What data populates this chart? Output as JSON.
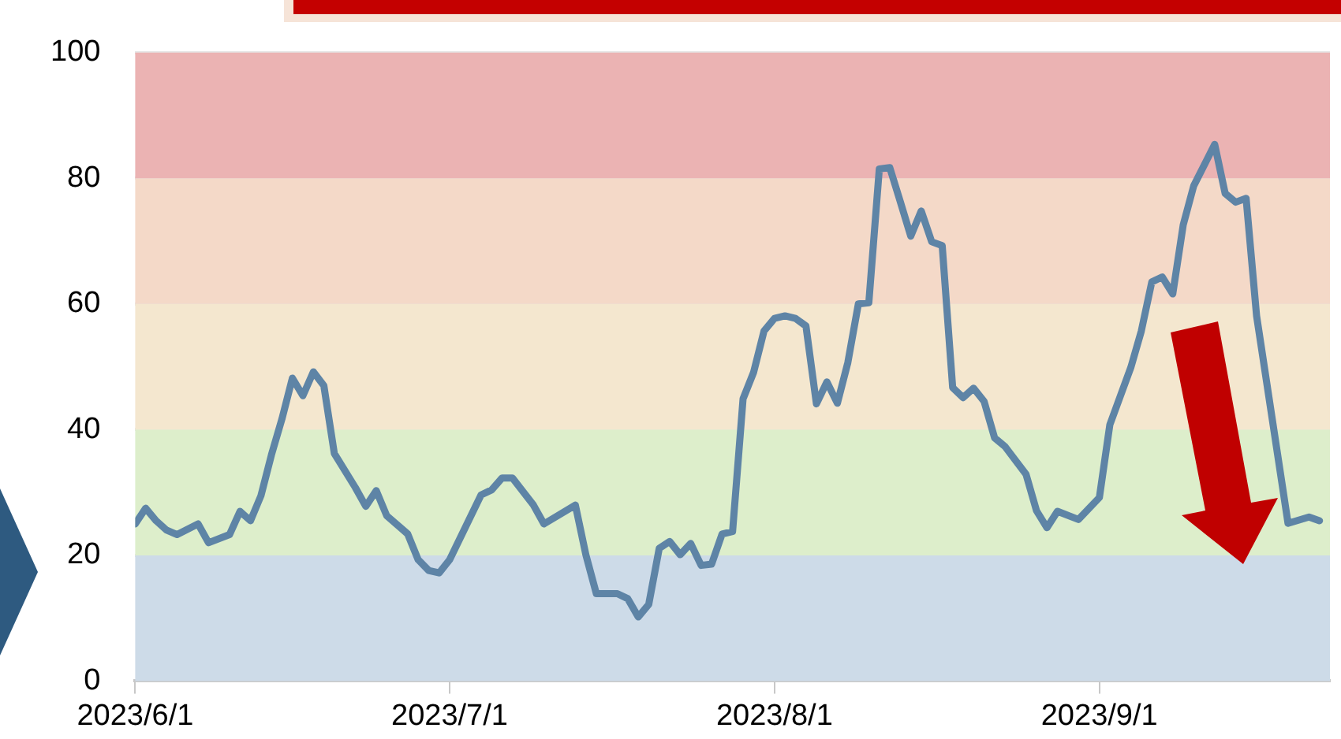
{
  "chart_data": {
    "type": "line",
    "x": [
      "2023-06-01",
      "2023-06-02",
      "2023-06-03",
      "2023-06-04",
      "2023-06-05",
      "2023-06-07",
      "2023-06-08",
      "2023-06-10",
      "2023-06-11",
      "2023-06-12",
      "2023-06-13",
      "2023-06-14",
      "2023-06-15",
      "2023-06-16",
      "2023-06-17",
      "2023-06-18",
      "2023-06-19",
      "2023-06-20",
      "2023-06-22",
      "2023-06-23",
      "2023-06-24",
      "2023-06-25",
      "2023-06-27",
      "2023-06-28",
      "2023-06-29",
      "2023-06-30",
      "2023-07-01",
      "2023-07-04",
      "2023-07-05",
      "2023-07-06",
      "2023-07-07",
      "2023-07-09",
      "2023-07-10",
      "2023-07-13",
      "2023-07-14",
      "2023-07-15",
      "2023-07-17",
      "2023-07-18",
      "2023-07-19",
      "2023-07-20",
      "2023-07-21",
      "2023-07-22",
      "2023-07-23",
      "2023-07-24",
      "2023-07-25",
      "2023-07-26",
      "2023-07-27",
      "2023-07-28",
      "2023-07-29",
      "2023-07-30",
      "2023-07-31",
      "2023-08-01",
      "2023-08-02",
      "2023-08-03",
      "2023-08-04",
      "2023-08-05",
      "2023-08-06",
      "2023-08-07",
      "2023-08-08",
      "2023-08-09",
      "2023-08-10",
      "2023-08-11",
      "2023-08-12",
      "2023-08-13",
      "2023-08-14",
      "2023-08-15",
      "2023-08-16",
      "2023-08-17",
      "2023-08-18",
      "2023-08-19",
      "2023-08-20",
      "2023-08-21",
      "2023-08-22",
      "2023-08-23",
      "2023-08-25",
      "2023-08-26",
      "2023-08-27",
      "2023-08-28",
      "2023-08-30",
      "2023-09-01",
      "2023-09-02",
      "2023-09-04",
      "2023-09-05",
      "2023-09-06",
      "2023-09-07",
      "2023-09-08",
      "2023-09-09",
      "2023-09-10",
      "2023-09-12",
      "2023-09-13",
      "2023-09-14",
      "2023-09-15",
      "2023-09-16",
      "2023-09-19",
      "2023-09-21",
      "2023-09-22"
    ],
    "series": [
      {
        "color": "#5e84a6",
        "values": [
          25,
          27.5,
          25.5,
          24,
          23.3,
          25,
          22,
          23.3,
          27,
          25.5,
          29.5,
          36,
          41.7,
          48.2,
          45.4,
          49.2,
          47,
          36.2,
          30.8,
          27.8,
          30.3,
          26.3,
          23.4,
          19.3,
          17.6,
          17.2,
          19.3,
          29.6,
          30.4,
          32.3,
          32.3,
          28,
          25,
          28,
          20.1,
          13.9,
          13.9,
          13.1,
          10.2,
          12.2,
          21.1,
          22.2,
          20.1,
          21.9,
          18.4,
          18.6,
          23.4,
          23.8,
          44.9,
          49.1,
          55.7,
          57.7,
          58.1,
          57.7,
          56.5,
          44.1,
          47.6,
          44.2,
          50.7,
          60,
          60.2,
          81.5,
          81.7,
          76.3,
          70.8,
          74.8,
          69.9,
          69.3,
          46.7,
          45.1,
          46.6,
          44.5,
          38.7,
          37.3,
          32.9,
          27.1,
          24.4,
          27,
          25.7,
          29.2,
          40.8,
          49.9,
          55.7,
          63.5,
          64.3,
          61.6,
          72.6,
          78.8,
          85.4,
          77.6,
          76.2,
          76.8,
          58.1,
          25.1,
          26.1,
          25.5
        ]
      }
    ],
    "xlim": [
      "2023-06-01",
      "2023-09-23"
    ],
    "xticks": [
      {
        "value": "2023-06-01",
        "label": "2023/6/1"
      },
      {
        "value": "2023-07-01",
        "label": "2023/7/1"
      },
      {
        "value": "2023-08-01",
        "label": "2023/8/1"
      },
      {
        "value": "2023-09-01",
        "label": "2023/9/1"
      }
    ],
    "ylim": [
      0,
      100
    ],
    "yticks": [
      0,
      20,
      40,
      60,
      80,
      100
    ],
    "bands": [
      {
        "axis": "y",
        "from": 0,
        "to": 20,
        "color": "#cddbe8"
      },
      {
        "axis": "y",
        "from": 20,
        "to": 40,
        "color": "#ddeecb"
      },
      {
        "axis": "y",
        "from": 40,
        "to": 60,
        "color": "#f4e7cf"
      },
      {
        "axis": "y",
        "from": 60,
        "to": 80,
        "color": "#f4d9c8"
      },
      {
        "axis": "y",
        "from": 80,
        "to": 100,
        "color": "#ebb3b3"
      }
    ],
    "grid": "y",
    "marker": "none",
    "line_style": "solid"
  }
}
